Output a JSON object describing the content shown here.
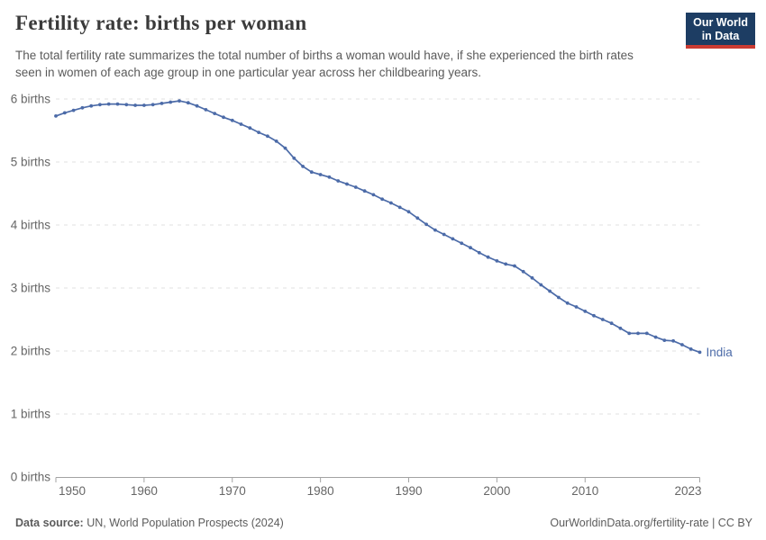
{
  "header": {
    "title": "Fertility rate: births per woman",
    "subtitle": "The total fertility rate summarizes the total number of births a woman would have, if she experienced the birth rates seen in women of each age group in one particular year across her childbearing years.",
    "logo": {
      "line1": "Our World",
      "line2": "in Data",
      "bg_color": "#1d3d63",
      "accent_color": "#cb3b32"
    }
  },
  "chart_data": {
    "type": "line",
    "title": "Fertility rate: births per woman",
    "xlabel": "",
    "ylabel": "births per woman",
    "ylim": [
      0,
      6
    ],
    "xlim": [
      1950,
      2023
    ],
    "grid": "horizontal-dashed",
    "legend_position": "end-of-line",
    "x": [
      1950,
      1951,
      1952,
      1953,
      1954,
      1955,
      1956,
      1957,
      1958,
      1959,
      1960,
      1961,
      1962,
      1963,
      1964,
      1965,
      1966,
      1967,
      1968,
      1969,
      1970,
      1971,
      1972,
      1973,
      1974,
      1975,
      1976,
      1977,
      1978,
      1979,
      1980,
      1981,
      1982,
      1983,
      1984,
      1985,
      1986,
      1987,
      1988,
      1989,
      1990,
      1991,
      1992,
      1993,
      1994,
      1995,
      1996,
      1997,
      1998,
      1999,
      2000,
      2001,
      2002,
      2003,
      2004,
      2005,
      2006,
      2007,
      2008,
      2009,
      2010,
      2011,
      2012,
      2013,
      2014,
      2015,
      2016,
      2017,
      2018,
      2019,
      2020,
      2021,
      2022,
      2023
    ],
    "series": [
      {
        "name": "India",
        "color": "#4C6BA8",
        "values": [
          5.73,
          5.78,
          5.82,
          5.86,
          5.89,
          5.91,
          5.92,
          5.92,
          5.91,
          5.9,
          5.9,
          5.91,
          5.93,
          5.95,
          5.97,
          5.94,
          5.89,
          5.83,
          5.77,
          5.71,
          5.66,
          5.6,
          5.54,
          5.47,
          5.41,
          5.33,
          5.22,
          5.06,
          4.93,
          4.84,
          4.8,
          4.76,
          4.7,
          4.65,
          4.6,
          4.54,
          4.48,
          4.41,
          4.35,
          4.28,
          4.21,
          4.11,
          4.01,
          3.92,
          3.85,
          3.78,
          3.71,
          3.64,
          3.56,
          3.49,
          3.43,
          3.38,
          3.35,
          3.26,
          3.16,
          3.05,
          2.95,
          2.85,
          2.76,
          2.7,
          2.63,
          2.56,
          2.5,
          2.44,
          2.36,
          2.28,
          2.28,
          2.28,
          2.22,
          2.17,
          2.16,
          2.1,
          2.03,
          1.98
        ]
      }
    ],
    "yticks": [
      {
        "value": 0,
        "label": "0 births"
      },
      {
        "value": 1,
        "label": "1 births"
      },
      {
        "value": 2,
        "label": "2 births"
      },
      {
        "value": 3,
        "label": "3 births"
      },
      {
        "value": 4,
        "label": "4 births"
      },
      {
        "value": 5,
        "label": "5 births"
      },
      {
        "value": 6,
        "label": "6 births"
      }
    ],
    "xticks": [
      1950,
      1960,
      1970,
      1980,
      1990,
      2000,
      2010,
      2023
    ],
    "colors": {
      "grid": "#e2e2e2",
      "axis": "#a3a3a3",
      "tick_label": "#666666"
    }
  },
  "footer": {
    "source_label": "Data source:",
    "source_text": " UN, World Population Prospects (2024)",
    "link_text": "OurWorldinData.org/fertility-rate",
    "license_suffix": " | CC BY"
  }
}
